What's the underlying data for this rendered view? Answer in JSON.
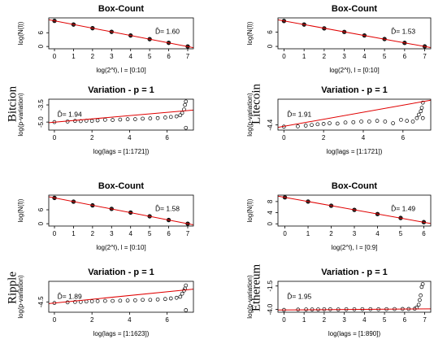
{
  "panel_labels": [
    "Bitcion",
    "Litecoin",
    "Ripple",
    "Ethereum"
  ],
  "chart_data": [
    {
      "type": "scatter",
      "title": "Box-Count",
      "x_label": "log(2^l), l = [0:10]",
      "y_label": "log(N(l))",
      "point_style": "filled",
      "xlim": [
        -0.3,
        7.3
      ],
      "ylim": [
        -1,
        12.5
      ],
      "xticks": [
        0,
        1,
        2,
        3,
        4,
        5,
        6,
        7
      ],
      "yticks": [
        0,
        6
      ],
      "x": [
        0,
        1,
        2,
        3,
        4,
        5,
        6,
        7
      ],
      "y": [
        11.2,
        9.6,
        8.0,
        6.4,
        4.8,
        3.2,
        1.6,
        0.0
      ],
      "fit": {
        "color": "#e00000",
        "x": [
          -0.3,
          7.3
        ],
        "y": [
          11.7,
          -0.5
        ]
      },
      "annotation": "D̂= 1.60"
    },
    {
      "type": "scatter",
      "title": "Variation - p = 1",
      "x_label": "log(lags = [1:1721])",
      "y_label": "log(p-variation)",
      "point_style": "open",
      "xlim": [
        -0.3,
        7.4
      ],
      "ylim": [
        -5.7,
        -3.0
      ],
      "xticks": [
        0,
        2,
        4,
        6
      ],
      "yticks": [
        -3.5,
        {
          "value": -5,
          "label": "-5.0"
        }
      ],
      "x": [
        0,
        0.7,
        1.1,
        1.4,
        1.7,
        2.0,
        2.3,
        2.7,
        3.1,
        3.5,
        3.9,
        4.3,
        4.7,
        5.1,
        5.5,
        5.9,
        6.2,
        6.5,
        6.7,
        6.8,
        6.9,
        6.95,
        7.0,
        7.0
      ],
      "y": [
        -5.0,
        -4.95,
        -4.9,
        -4.92,
        -4.88,
        -4.9,
        -4.85,
        -4.8,
        -4.82,
        -4.78,
        -4.75,
        -4.75,
        -4.7,
        -4.68,
        -4.65,
        -4.6,
        -4.55,
        -4.5,
        -4.4,
        -4.2,
        -3.9,
        -3.5,
        -3.2,
        -5.5
      ],
      "fit": {
        "color": "#e00000",
        "x": [
          -0.3,
          7.4
        ],
        "y": [
          -5.05,
          -3.95
        ]
      },
      "annotation": "D̂= 1.94"
    },
    {
      "type": "scatter",
      "title": "Box-Count",
      "x_label": "log(2^l), l = [0:10]",
      "y_label": "log(N(l))",
      "point_style": "filled",
      "xlim": [
        -0.3,
        7.3
      ],
      "ylim": [
        -1,
        12
      ],
      "xticks": [
        0,
        1,
        2,
        3,
        4,
        5,
        6,
        7
      ],
      "yticks": [
        0,
        6
      ],
      "x": [
        0,
        1,
        2,
        3,
        4,
        5,
        6,
        7
      ],
      "y": [
        10.7,
        9.2,
        7.6,
        6.1,
        4.6,
        3.1,
        1.5,
        0.0
      ],
      "fit": {
        "color": "#e00000",
        "x": [
          -0.3,
          7.3
        ],
        "y": [
          11.2,
          -0.5
        ]
      },
      "annotation": "D̂= 1.53"
    },
    {
      "type": "scatter",
      "title": "Variation - p = 1",
      "x_label": "log(lags = [1:1721])",
      "y_label": "log(p-variation)",
      "point_style": "open",
      "xlim": [
        -0.3,
        7.4
      ],
      "ylim": [
        -4.55,
        -3.65
      ],
      "xticks": [
        0,
        2,
        4,
        6
      ],
      "yticks": [
        -4.4
      ],
      "x": [
        0,
        0.7,
        1.1,
        1.4,
        1.7,
        2.0,
        2.3,
        2.7,
        3.1,
        3.5,
        3.9,
        4.3,
        4.7,
        5.1,
        5.5,
        5.9,
        6.2,
        6.5,
        6.7,
        6.8,
        6.9,
        6.95,
        7.0,
        7.0
      ],
      "y": [
        -4.45,
        -4.44,
        -4.42,
        -4.4,
        -4.38,
        -4.37,
        -4.35,
        -4.36,
        -4.33,
        -4.32,
        -4.3,
        -4.3,
        -4.28,
        -4.3,
        -4.35,
        -4.25,
        -4.28,
        -4.3,
        -4.2,
        -4.1,
        -4.0,
        -3.9,
        -3.75,
        -4.2
      ],
      "fit": {
        "color": "#e00000",
        "x": [
          -0.3,
          7.4
        ],
        "y": [
          -4.47,
          -3.68
        ]
      },
      "annotation": "D̂= 1.91"
    },
    {
      "type": "scatter",
      "title": "Box-Count",
      "x_label": "log(2^l), l = [0:10]",
      "y_label": "log(N(l))",
      "point_style": "filled",
      "xlim": [
        -0.3,
        7.3
      ],
      "ylim": [
        -1,
        12.3
      ],
      "xticks": [
        0,
        1,
        2,
        3,
        4,
        5,
        6,
        7
      ],
      "yticks": [
        0,
        6
      ],
      "x": [
        0,
        1,
        2,
        3,
        4,
        5,
        6,
        7
      ],
      "y": [
        11.1,
        9.5,
        7.9,
        6.4,
        4.8,
        3.2,
        1.6,
        0.0
      ],
      "fit": {
        "color": "#e00000",
        "x": [
          -0.3,
          7.3
        ],
        "y": [
          11.6,
          -0.5
        ]
      },
      "annotation": "D̂= 1.58"
    },
    {
      "type": "scatter",
      "title": "Variation - p = 1",
      "x_label": "log(lags = [1:1623])",
      "y_label": "log(p-variation)",
      "point_style": "open",
      "xlim": [
        -0.3,
        7.4
      ],
      "ylim": [
        -5.0,
        -3.5
      ],
      "xticks": [
        0,
        2,
        4,
        6
      ],
      "yticks": [
        -4.5
      ],
      "x": [
        0,
        0.7,
        1.1,
        1.4,
        1.7,
        2.0,
        2.3,
        2.7,
        3.1,
        3.5,
        3.9,
        4.3,
        4.7,
        5.1,
        5.5,
        5.9,
        6.2,
        6.5,
        6.7,
        6.8,
        6.9,
        6.95,
        7.0,
        7.0
      ],
      "y": [
        -4.55,
        -4.52,
        -4.5,
        -4.5,
        -4.48,
        -4.47,
        -4.46,
        -4.45,
        -4.45,
        -4.44,
        -4.43,
        -4.42,
        -4.4,
        -4.4,
        -4.38,
        -4.36,
        -4.33,
        -4.3,
        -4.25,
        -4.1,
        -3.95,
        -3.85,
        -3.7,
        -4.9
      ],
      "fit": {
        "color": "#e00000",
        "x": [
          -0.3,
          7.4
        ],
        "y": [
          -4.58,
          -3.88
        ]
      },
      "annotation": "D̂= 1.89"
    },
    {
      "type": "scatter",
      "title": "Box-Count",
      "x_label": "log(2^l), l = [0:9]",
      "y_label": "log(N(l))",
      "point_style": "filled",
      "xlim": [
        -0.3,
        6.3
      ],
      "ylim": [
        -0.8,
        10.3
      ],
      "xticks": [
        0,
        1,
        2,
        3,
        4,
        5,
        6
      ],
      "yticks": [
        0,
        4,
        8
      ],
      "x": [
        0,
        1,
        2,
        3,
        4,
        5,
        6
      ],
      "y": [
        9.5,
        8.0,
        6.5,
        5.0,
        3.5,
        2.1,
        0.6
      ],
      "fit": {
        "color": "#e00000",
        "x": [
          -0.3,
          6.3
        ],
        "y": [
          9.95,
          0.1
        ]
      },
      "annotation": "D̂= 1.49"
    },
    {
      "type": "scatter",
      "title": "Variation - p = 1",
      "x_label": "log(lags = [1:890])",
      "y_label": "log(p-variation)",
      "point_style": "open",
      "xlim": [
        -0.3,
        7.3
      ],
      "ylim": [
        -4.3,
        -1.0
      ],
      "xticks": [
        0,
        1,
        2,
        3,
        4,
        5,
        6,
        7
      ],
      "yticks": [
        -1.5,
        {
          "value": -4,
          "label": "-4.0"
        }
      ],
      "x": [
        0,
        0.7,
        1.1,
        1.4,
        1.7,
        2.0,
        2.3,
        2.7,
        3.1,
        3.5,
        3.9,
        4.3,
        4.7,
        5.1,
        5.5,
        5.9,
        6.2,
        6.5,
        6.6,
        6.7,
        6.75,
        6.8,
        6.85,
        6.9
      ],
      "y": [
        -4.05,
        -4.02,
        -4.0,
        -4.0,
        -4.0,
        -3.98,
        -3.98,
        -4.0,
        -3.98,
        -3.98,
        -3.97,
        -3.97,
        -3.98,
        -3.97,
        -3.96,
        -3.95,
        -3.95,
        -3.93,
        -3.8,
        -3.5,
        -3.0,
        -2.5,
        -1.6,
        -1.3
      ],
      "fit": {
        "color": "#e00000",
        "x": [
          -0.3,
          7.3
        ],
        "y": [
          -4.06,
          -3.94
        ]
      },
      "annotation": "D̂= 1.95"
    }
  ]
}
